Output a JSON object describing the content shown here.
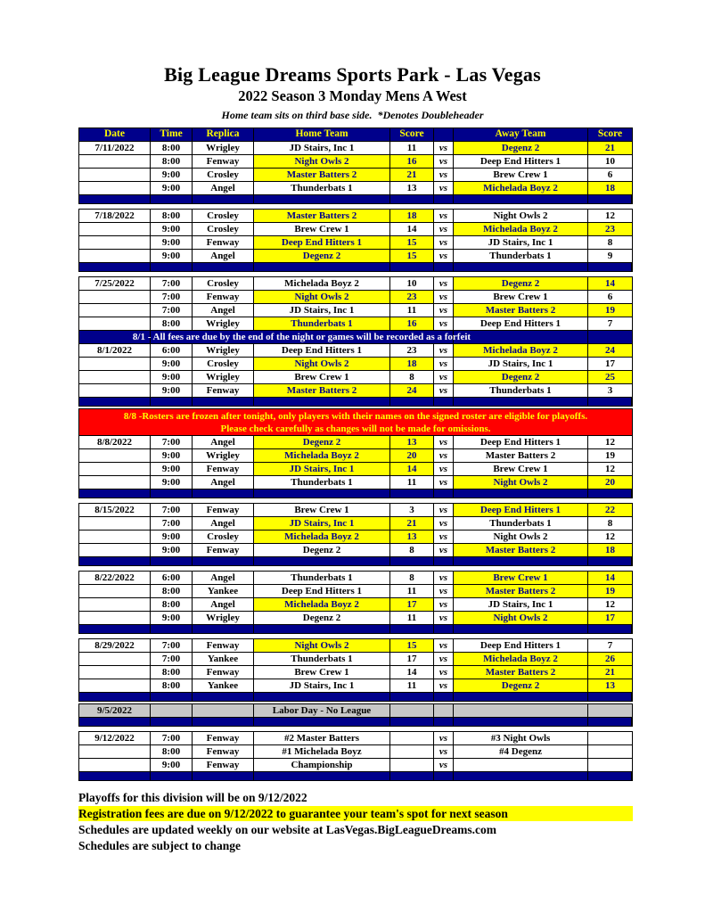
{
  "page": {
    "title": "Big League Dreams Sports Park - Las Vegas",
    "subtitle": "2022 Season 3 Monday Mens A West",
    "note": "Home team sits on third base side.  *Denotes Doubleheader"
  },
  "colors": {
    "navy": "#00008B",
    "highlight_yellow": "#FFFF00",
    "banner_red": "#FF0000",
    "special_gray": "#C8C8C8",
    "header_text": "#FFFF00",
    "winner_text": "#00008B",
    "note_text": "#FFFFFF"
  },
  "table": {
    "headers": [
      "Date",
      "Time",
      "Replica",
      "Home Team",
      "Score",
      "",
      "Away Team",
      "Score"
    ],
    "vs_label": "vs",
    "rows": [
      {
        "type": "header"
      },
      {
        "type": "game",
        "date": "7/11/2022",
        "time": "8:00",
        "replica": "Wrigley",
        "home": "JD Stairs, Inc 1",
        "hs": "11",
        "away": "Degenz 2",
        "as": "21",
        "winner": "away"
      },
      {
        "type": "game",
        "date": "",
        "time": "8:00",
        "replica": "Fenway",
        "home": "Night Owls 2",
        "hs": "16",
        "away": "Deep End Hitters 1",
        "as": "10",
        "winner": "home"
      },
      {
        "type": "game",
        "date": "",
        "time": "9:00",
        "replica": "Crosley",
        "home": "Master Batters 2",
        "hs": "21",
        "away": "Brew Crew 1",
        "as": "6",
        "winner": "home"
      },
      {
        "type": "game",
        "date": "",
        "time": "9:00",
        "replica": "Angel",
        "home": "Thunderbats 1",
        "hs": "13",
        "away": "Michelada Boyz 2",
        "as": "18",
        "winner": "away"
      },
      {
        "type": "separator"
      },
      {
        "type": "gap",
        "h": 5
      },
      {
        "type": "game",
        "date": "7/18/2022",
        "time": "8:00",
        "replica": "Crosley",
        "home": "Master Batters 2",
        "hs": "18",
        "away": "Night Owls 2",
        "as": "12",
        "winner": "home"
      },
      {
        "type": "game",
        "date": "",
        "time": "9:00",
        "replica": "Crosley",
        "home": "Brew Crew 1",
        "hs": "14",
        "away": "Michelada Boyz 2",
        "as": "23",
        "winner": "away"
      },
      {
        "type": "game",
        "date": "",
        "time": "9:00",
        "replica": "Fenway",
        "home": "Deep End Hitters 1",
        "hs": "15",
        "away": "JD Stairs, Inc 1",
        "as": "8",
        "winner": "home"
      },
      {
        "type": "game",
        "date": "",
        "time": "9:00",
        "replica": "Angel",
        "home": "Degenz 2",
        "hs": "15",
        "away": "Thunderbats 1",
        "as": "9",
        "winner": "home"
      },
      {
        "type": "separator"
      },
      {
        "type": "gap",
        "h": 5
      },
      {
        "type": "game",
        "date": "7/25/2022",
        "time": "7:00",
        "replica": "Crosley",
        "home": "Michelada Boyz 2",
        "hs": "10",
        "away": "Degenz 2",
        "as": "14",
        "winner": "away"
      },
      {
        "type": "game",
        "date": "",
        "time": "7:00",
        "replica": "Fenway",
        "home": "Night Owls 2",
        "hs": "23",
        "away": "Brew Crew 1",
        "as": "6",
        "winner": "home"
      },
      {
        "type": "game",
        "date": "",
        "time": "7:00",
        "replica": "Angel",
        "home": "JD Stairs, Inc 1",
        "hs": "11",
        "away": "Master Batters 2",
        "as": "19",
        "winner": "away"
      },
      {
        "type": "game",
        "date": "",
        "time": "8:00",
        "replica": "Wrigley",
        "home": "Thunderbats 1",
        "hs": "16",
        "away": "Deep End Hitters 1",
        "as": "7",
        "winner": "home"
      },
      {
        "type": "note",
        "text": "8/1 - All fees are due by the end of the night or games will be recorded as a forfeit"
      },
      {
        "type": "game",
        "date": "8/1/2022",
        "time": "6:00",
        "replica": "Wrigley",
        "home": "Deep End Hitters 1",
        "hs": "23",
        "away": "Michelada Boyz 2",
        "as": "24",
        "winner": "away"
      },
      {
        "type": "game",
        "date": "",
        "time": "9:00",
        "replica": "Crosley",
        "home": "Night Owls 2",
        "hs": "18",
        "away": "JD Stairs, Inc 1",
        "as": "17",
        "winner": "home"
      },
      {
        "type": "game",
        "date": "",
        "time": "9:00",
        "replica": "Wrigley",
        "home": "Brew Crew 1",
        "hs": "8",
        "away": "Degenz 2",
        "as": "25",
        "winner": "away"
      },
      {
        "type": "game",
        "date": "",
        "time": "9:00",
        "replica": "Fenway",
        "home": "Master Batters 2",
        "hs": "24",
        "away": "Thunderbats 1",
        "as": "3",
        "winner": "home"
      },
      {
        "type": "separator"
      },
      {
        "type": "gap",
        "h": 2
      },
      {
        "type": "banner",
        "lines": [
          "8/8 -Rosters are frozen after tonight, only players with their names on the signed roster are eligible for playoffs.",
          "Please check carefully as changes will not be made for omissions."
        ]
      },
      {
        "type": "game",
        "date": "8/8/2022",
        "time": "7:00",
        "replica": "Angel",
        "home": "Degenz 2",
        "hs": "13",
        "away": "Deep End Hitters 1",
        "as": "12",
        "winner": "home"
      },
      {
        "type": "game",
        "date": "",
        "time": "9:00",
        "replica": "Wrigley",
        "home": "Michelada Boyz 2",
        "hs": "20",
        "away": "Master Batters 2",
        "as": "19",
        "winner": "home"
      },
      {
        "type": "game",
        "date": "",
        "time": "9:00",
        "replica": "Fenway",
        "home": "JD Stairs, Inc 1",
        "hs": "14",
        "away": "Brew Crew 1",
        "as": "12",
        "winner": "home"
      },
      {
        "type": "game",
        "date": "",
        "time": "9:00",
        "replica": "Angel",
        "home": "Thunderbats 1",
        "hs": "11",
        "away": "Night Owls 2",
        "as": "20",
        "winner": "away"
      },
      {
        "type": "separator"
      },
      {
        "type": "gap",
        "h": 5
      },
      {
        "type": "game",
        "date": "8/15/2022",
        "time": "7:00",
        "replica": "Fenway",
        "home": "Brew Crew 1",
        "hs": "3",
        "away": "Deep End Hitters 1",
        "as": "22",
        "winner": "away"
      },
      {
        "type": "game",
        "date": "",
        "time": "7:00",
        "replica": "Angel",
        "home": "JD Stairs, Inc 1",
        "hs": "21",
        "away": "Thunderbats 1",
        "as": "8",
        "winner": "home"
      },
      {
        "type": "game",
        "date": "",
        "time": "9:00",
        "replica": "Crosley",
        "home": "Michelada Boyz 2",
        "hs": "13",
        "away": "Night Owls 2",
        "as": "12",
        "winner": "home"
      },
      {
        "type": "game",
        "date": "",
        "time": "9:00",
        "replica": "Fenway",
        "home": "Degenz 2",
        "hs": "8",
        "away": "Master Batters 2",
        "as": "18",
        "winner": "away"
      },
      {
        "type": "separator"
      },
      {
        "type": "gap",
        "h": 5
      },
      {
        "type": "game",
        "date": "8/22/2022",
        "time": "6:00",
        "replica": "Angel",
        "home": "Thunderbats 1",
        "hs": "8",
        "away": "Brew Crew 1",
        "as": "14",
        "winner": "away"
      },
      {
        "type": "game",
        "date": "",
        "time": "8:00",
        "replica": "Yankee",
        "home": "Deep End Hitters 1",
        "hs": "11",
        "away": "Master Batters 2",
        "as": "19",
        "winner": "away"
      },
      {
        "type": "game",
        "date": "",
        "time": "8:00",
        "replica": "Angel",
        "home": "Michelada Boyz 2",
        "hs": "17",
        "away": "JD Stairs, Inc 1",
        "as": "12",
        "winner": "home"
      },
      {
        "type": "game",
        "date": "",
        "time": "9:00",
        "replica": "Wrigley",
        "home": "Degenz 2",
        "hs": "11",
        "away": "Night Owls 2",
        "as": "17",
        "winner": "away"
      },
      {
        "type": "separator"
      },
      {
        "type": "gap",
        "h": 5
      },
      {
        "type": "game",
        "date": "8/29/2022",
        "time": "7:00",
        "replica": "Fenway",
        "home": "Night Owls 2",
        "hs": "15",
        "away": "Deep End Hitters 1",
        "as": "7",
        "winner": "home"
      },
      {
        "type": "game",
        "date": "",
        "time": "7:00",
        "replica": "Yankee",
        "home": "Thunderbats 1",
        "hs": "17",
        "away": "Michelada Boyz 2",
        "as": "26",
        "winner": "away"
      },
      {
        "type": "game",
        "date": "",
        "time": "8:00",
        "replica": "Fenway",
        "home": "Brew Crew 1",
        "hs": "14",
        "away": "Master Batters 2",
        "as": "21",
        "winner": "away"
      },
      {
        "type": "game",
        "date": "",
        "time": "8:00",
        "replica": "Yankee",
        "home": "JD Stairs, Inc 1",
        "hs": "11",
        "away": "Degenz 2",
        "as": "13",
        "winner": "away"
      },
      {
        "type": "separator"
      },
      {
        "type": "gap",
        "h": 2
      },
      {
        "type": "special",
        "date": "9/5/2022",
        "text": "Labor Day - No League"
      },
      {
        "type": "separator"
      },
      {
        "type": "gap",
        "h": 5
      },
      {
        "type": "game",
        "date": "9/12/2022",
        "time": "7:00",
        "replica": "Fenway",
        "home": "#2 Master Batters",
        "hs": "",
        "away": "#3 Night Owls",
        "as": "",
        "winner": null
      },
      {
        "type": "game",
        "date": "",
        "time": "8:00",
        "replica": "Fenway",
        "home": "#1 Michelada Boyz",
        "hs": "",
        "away": "#4 Degenz",
        "as": "",
        "winner": null
      },
      {
        "type": "game",
        "date": "",
        "time": "9:00",
        "replica": "Fenway",
        "home": "Championship",
        "hs": "",
        "away": "",
        "as": "",
        "winner": null
      },
      {
        "type": "separator"
      }
    ]
  },
  "footer": {
    "lines": [
      {
        "text": "Playoffs for this division will be on 9/12/2022",
        "highlight": false
      },
      {
        "text": "Registration fees are due on 9/12/2022 to guarantee your team's spot for next season",
        "highlight": true
      },
      {
        "text": "Schedules are updated weekly on our website at LasVegas.BigLeagueDreams.com",
        "highlight": false
      },
      {
        "text": "Schedules are subject to change",
        "highlight": false
      }
    ]
  }
}
